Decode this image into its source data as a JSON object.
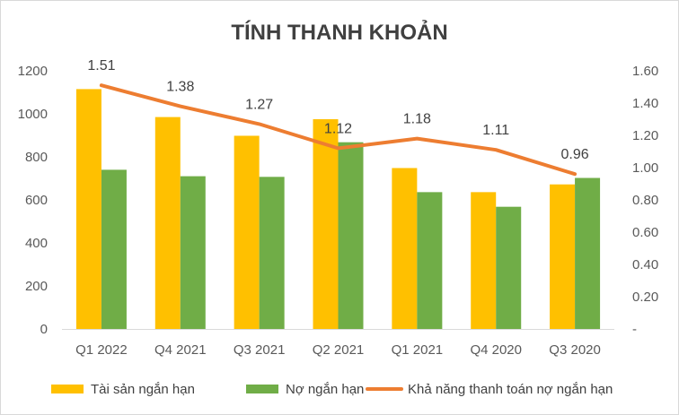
{
  "chart_data": {
    "type": "bar",
    "title": "TÍNH THANH KHOẢN",
    "categories": [
      "Q1 2022",
      "Q4 2021",
      "Q3 2021",
      "Q2 2021",
      "Q1 2021",
      "Q4 2020",
      "Q3 2020"
    ],
    "series": [
      {
        "name": "Tài sản ngắn hạn",
        "type": "bar",
        "axis": "left",
        "color": "#ffc000",
        "values": [
          1115,
          985,
          898,
          975,
          748,
          636,
          672
        ]
      },
      {
        "name": "Nợ ngắn hạn",
        "type": "bar",
        "axis": "left",
        "color": "#70ad47",
        "values": [
          740,
          710,
          707,
          868,
          636,
          568,
          702
        ]
      },
      {
        "name": "Khả năng thanh toán nợ ngắn hạn",
        "type": "line",
        "axis": "right",
        "color": "#ed7d31",
        "values": [
          1.51,
          1.38,
          1.27,
          1.12,
          1.18,
          1.11,
          0.96
        ],
        "labels": [
          "1.51",
          "1.38",
          "1.27",
          "1.12",
          "1.18",
          "1.11",
          "0.96"
        ]
      }
    ],
    "y_left": {
      "ylim": [
        0,
        1200
      ],
      "ticks": [
        "0",
        "200",
        "400",
        "600",
        "800",
        "1000",
        "1200"
      ]
    },
    "y_right": {
      "ylim": [
        0,
        1.6
      ],
      "ticks": [
        "-",
        "0.20",
        "0.40",
        "0.60",
        "0.80",
        "1.00",
        "1.20",
        "1.40",
        "1.60"
      ]
    },
    "grid": false,
    "legend": "bottom"
  }
}
